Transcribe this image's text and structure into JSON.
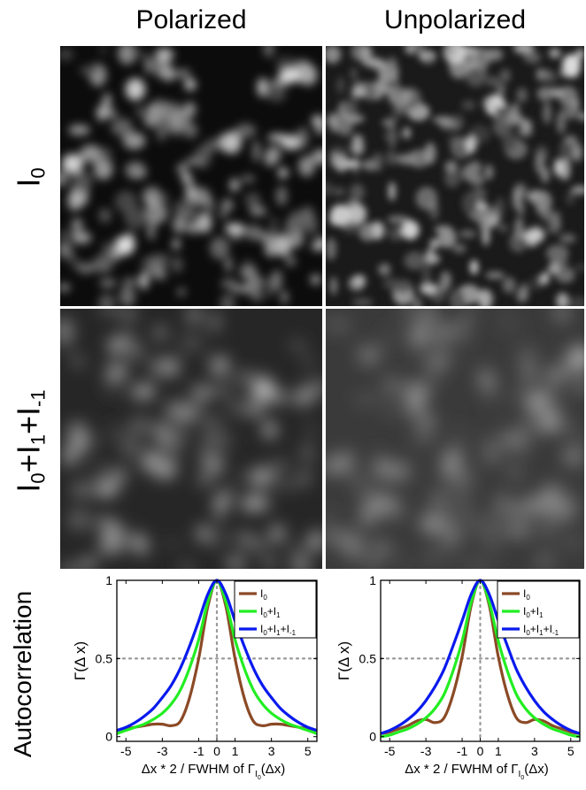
{
  "column_titles": [
    "Polarized",
    "Unpolarized"
  ],
  "row_labels": {
    "row1": {
      "base": "I",
      "sub": "0"
    },
    "row2": {
      "parts": [
        {
          "t": "I",
          "s": "0"
        },
        {
          "t": "+I",
          "s": "1"
        },
        {
          "t": "+I",
          "s": "-1"
        }
      ]
    },
    "row3": "Autocorrelation"
  },
  "panels": {
    "image_panels": [
      {
        "row": "I0",
        "column": "Polarized"
      },
      {
        "row": "I0",
        "column": "Unpolarized"
      },
      {
        "row": "I0+I1+I-1",
        "column": "Polarized"
      },
      {
        "row": "I0+I1+I-1",
        "column": "Unpolarized"
      }
    ]
  },
  "colors": {
    "I0": "#8B4A26",
    "I0+I1": "#22EE22",
    "I0+I1+I-1": "#0A1AEE",
    "reference": "#999999"
  },
  "chart_data": [
    {
      "type": "line",
      "panel": "Polarized",
      "ylabel": "Γ(Δ x)",
      "xlabel": "Δx * 2 / FWHM of Γ",
      "xlabel_sub": "I",
      "xlabel_subsub": "0",
      "xlabel_tail": "(Δx)",
      "xlim": [
        -5.5,
        5.5
      ],
      "ylim": [
        -0.03,
        1.0
      ],
      "xticks": [
        -5,
        -3,
        -1,
        0,
        1,
        3,
        5
      ],
      "yticks": [
        0,
        0.5,
        1
      ],
      "ytick_labels": [
        "0",
        "0.5",
        "1"
      ],
      "reference_lines": {
        "x": 0,
        "y": 0.5
      },
      "legend": {
        "position": "top-right",
        "entries": [
          {
            "base": "I",
            "subs": [
              "0"
            ]
          },
          {
            "base": "I",
            "subs": [
              "0",
              "1"
            ]
          },
          {
            "base": "I",
            "subs": [
              "0",
              "1",
              "-1"
            ]
          }
        ]
      },
      "x": [
        -5.5,
        -5,
        -4.5,
        -4,
        -3.5,
        -3,
        -2.5,
        -2,
        -1.5,
        -1,
        -0.5,
        0,
        0.5,
        1,
        1.5,
        2,
        2.5,
        3,
        3.5,
        4,
        4.5,
        5,
        5.5
      ],
      "series": [
        {
          "name": "I0",
          "values": [
            0.04,
            0.05,
            0.06,
            0.07,
            0.08,
            0.08,
            0.07,
            0.1,
            0.25,
            0.5,
            0.83,
            1.0,
            0.83,
            0.5,
            0.25,
            0.1,
            0.07,
            0.08,
            0.08,
            0.07,
            0.06,
            0.05,
            0.04
          ]
        },
        {
          "name": "I0+I1",
          "values": [
            0.02,
            0.04,
            0.06,
            0.08,
            0.11,
            0.15,
            0.21,
            0.3,
            0.44,
            0.62,
            0.86,
            1.0,
            0.86,
            0.62,
            0.44,
            0.3,
            0.21,
            0.15,
            0.11,
            0.08,
            0.06,
            0.04,
            0.02
          ]
        },
        {
          "name": "I0+I1+I-1",
          "values": [
            0.04,
            0.06,
            0.09,
            0.13,
            0.18,
            0.25,
            0.33,
            0.44,
            0.58,
            0.74,
            0.91,
            1.0,
            0.91,
            0.74,
            0.58,
            0.44,
            0.33,
            0.25,
            0.18,
            0.13,
            0.09,
            0.06,
            0.04
          ]
        }
      ]
    },
    {
      "type": "line",
      "panel": "Unpolarized",
      "ylabel": "Γ(Δ x)",
      "xlabel": "Δx * 2 / FWHM of Γ",
      "xlabel_sub": "I",
      "xlabel_subsub": "0",
      "xlabel_tail": "(Δx)",
      "xlim": [
        -5.5,
        5.5
      ],
      "ylim": [
        -0.03,
        1.0
      ],
      "xticks": [
        -5,
        -3,
        -1,
        0,
        1,
        3,
        5
      ],
      "yticks": [
        0,
        0.5,
        1
      ],
      "ytick_labels": [
        "0",
        "0.5",
        "1"
      ],
      "reference_lines": {
        "x": 0,
        "y": 0.5
      },
      "legend": {
        "position": "top-right",
        "entries": [
          {
            "base": "I",
            "subs": [
              "0"
            ]
          },
          {
            "base": "I",
            "subs": [
              "0",
              "1"
            ]
          },
          {
            "base": "I",
            "subs": [
              "0",
              "1",
              "-1"
            ]
          }
        ]
      },
      "x": [
        -5.5,
        -5,
        -4.5,
        -4,
        -3.5,
        -3,
        -2.5,
        -2,
        -1.5,
        -1,
        -0.5,
        0,
        0.5,
        1,
        1.5,
        2,
        2.5,
        3,
        3.5,
        4,
        4.5,
        5,
        5.5
      ],
      "series": [
        {
          "name": "I0",
          "values": [
            0.02,
            0.03,
            0.05,
            0.07,
            0.1,
            0.11,
            0.09,
            0.12,
            0.27,
            0.51,
            0.84,
            1.0,
            0.84,
            0.51,
            0.27,
            0.12,
            0.09,
            0.11,
            0.1,
            0.07,
            0.05,
            0.03,
            0.02
          ]
        },
        {
          "name": "I0+I1",
          "values": [
            0.0,
            0.01,
            0.03,
            0.05,
            0.08,
            0.12,
            0.18,
            0.27,
            0.42,
            0.61,
            0.86,
            1.0,
            0.86,
            0.61,
            0.42,
            0.27,
            0.18,
            0.12,
            0.08,
            0.05,
            0.03,
            0.01,
            0.0
          ]
        },
        {
          "name": "I0+I1+I-1",
          "values": [
            0.02,
            0.04,
            0.07,
            0.11,
            0.16,
            0.23,
            0.32,
            0.43,
            0.58,
            0.74,
            0.91,
            1.0,
            0.91,
            0.74,
            0.58,
            0.43,
            0.32,
            0.23,
            0.16,
            0.11,
            0.07,
            0.04,
            0.02
          ]
        }
      ]
    }
  ]
}
